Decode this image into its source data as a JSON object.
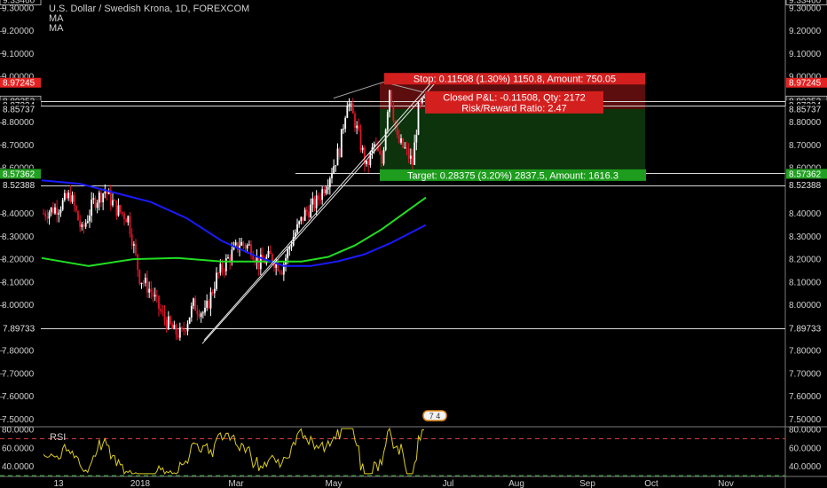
{
  "header": {
    "title": "U.S. Dollar / Swedish Krona, 1D, FOREXCOM",
    "indicators": [
      "MA",
      "MA"
    ]
  },
  "price_axis": {
    "ticks": [
      "9.30000",
      "9.20000",
      "9.10000",
      "9.00000",
      "8.80000",
      "8.70000",
      "8.60000",
      "8.40000",
      "8.30000",
      "8.20000",
      "8.10000",
      "8.00000",
      "7.80000",
      "7.70000",
      "7.60000",
      "7.50000"
    ],
    "tick_values": [
      9.3,
      9.2,
      9.1,
      9.0,
      8.8,
      8.7,
      8.6,
      8.4,
      8.3,
      8.2,
      8.1,
      8.0,
      7.8,
      7.7,
      7.6,
      7.5
    ],
    "range": [
      7.47,
      9.3346
    ],
    "badges": [
      {
        "label": "9.33460",
        "value": 9.3346,
        "bg": "#000000",
        "fg": "#cfcfcf",
        "border": "#cfcfcf"
      },
      {
        "label": "8.97245",
        "value": 8.97245,
        "bg": "#e52222",
        "fg": "#ffffff"
      },
      {
        "label": "8.89252",
        "value": 8.89252,
        "bg": "#1f1f1f",
        "fg": "#e0e0e0",
        "border": "#bbbbbb"
      },
      {
        "label": "8.87334",
        "value": 8.87334,
        "bg": "#000000",
        "fg": "#e0e0e0"
      },
      {
        "label": "8.85737",
        "value": 8.85737,
        "bg": "#000000",
        "fg": "#e0e0e0"
      },
      {
        "label": "8.57607",
        "value": 8.57607,
        "bg": "#000000",
        "fg": "#e0e0e0"
      },
      {
        "label": "8.57362",
        "value": 8.57362,
        "bg": "#22a022",
        "fg": "#ffffff"
      },
      {
        "label": "8.52388",
        "value": 8.52388,
        "bg": "#000000",
        "fg": "#e0e0e0"
      },
      {
        "label": "7.89733",
        "value": 7.89733,
        "bg": "#000000",
        "fg": "#e0e0e0"
      }
    ]
  },
  "time_axis": {
    "labels": [
      "13",
      "2018",
      "Mar",
      "May",
      "Jul",
      "Aug",
      "Sep",
      "Oct",
      "Nov"
    ]
  },
  "position": {
    "stop_label": "Stop: 0.11508 (1.30%) 1150.8, Amount: 750.05",
    "target_label": "Target: 0.28375 (3.20%) 2837.5, Amount: 1616.3",
    "pnl_line1": "Closed P&L: -0.11508, Qty: 2172",
    "pnl_line2": "Risk/Reward Ratio: 2.47",
    "entry": 8.85737,
    "stop": 8.97245,
    "target": 8.57362
  },
  "horizontal_levels": [
    8.89252,
    8.87334,
    8.57607,
    8.52388,
    7.89733
  ],
  "event_badge": {
    "label": "7 4"
  },
  "rsi": {
    "title": "RSI",
    "ticks": [
      "80.0000",
      "60.0000",
      "40.0000"
    ],
    "tick_values": [
      80,
      60,
      40
    ],
    "range": [
      30,
      82
    ],
    "upper": 70,
    "lower": 30
  },
  "colors": {
    "background": "#000000",
    "up_candle": "#ffffff",
    "down_candle": "#e0152a",
    "ma_fast": "#1a1aff",
    "ma_slow": "#22dd22",
    "rsi_line": "#ddcc22",
    "stop_zone": "#5c0d0d",
    "target_zone": "#0c330c",
    "text": "#cfcfcf"
  }
}
